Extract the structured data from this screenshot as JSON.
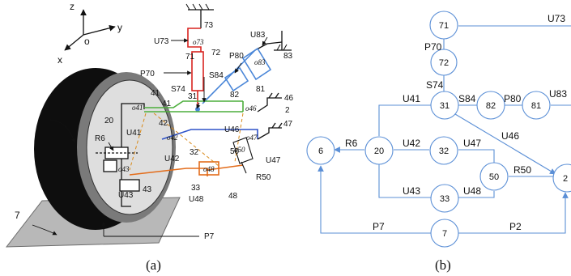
{
  "panel_a": {
    "caption": "(a)",
    "axes": {
      "z": "z",
      "y": "y",
      "x": "x",
      "origin": "o"
    },
    "labels": {
      "l6": "6",
      "l7": "7",
      "l20": "20",
      "l41": "41",
      "l41b": "41",
      "l31": "31",
      "l42": "42",
      "l43": "43",
      "l32": "32",
      "l33": "33",
      "l50": "50",
      "l48": "48",
      "l46": "46",
      "l47": "47",
      "l2": "2",
      "l71": "71",
      "l72": "72",
      "l73": "73",
      "l81": "81",
      "l82": "82",
      "l83": "83",
      "u73": "U73",
      "u83": "U83",
      "p70": "P70",
      "p80": "P80",
      "s74": "S74",
      "s84": "S84",
      "u41": "U41",
      "u42": "U42",
      "u43": "U43",
      "u46": "U46",
      "u47": "U47",
      "u48": "U48",
      "r6": "R6",
      "r50": "R50",
      "p7": "P7"
    },
    "frames": {
      "o73": "o73",
      "o83": "o83",
      "o41": "o41",
      "o46": "o46",
      "o42": "o42",
      "o47": "o47",
      "o43": "o43",
      "o48": "o48",
      "o50": "o50"
    }
  },
  "panel_b": {
    "caption": "(b)",
    "nodes": {
      "n71": "71",
      "n72": "72",
      "n31": "31",
      "n82": "82",
      "n81": "81",
      "n6": "6",
      "n20": "20",
      "n32": "32",
      "n50": "50",
      "n33": "33",
      "n2": "2",
      "n7": "7"
    },
    "edges": {
      "u73": "U73",
      "p70": "P70",
      "s74": "S74",
      "u41": "U41",
      "s84": "S84",
      "p80": "P80",
      "u83": "U83",
      "u46": "U46",
      "r6": "R6",
      "u42": "U42",
      "u47": "U47",
      "r50": "R50",
      "u43": "U43",
      "u48": "U48",
      "p7": "P7",
      "p2": "P2"
    }
  },
  "colors": {
    "graph_line": "#5b8fd6",
    "strut_red": "#d9231f",
    "strut_blue": "#4a86d8",
    "link_green": "#4cae3c",
    "link_blue": "#2e52c8",
    "link_orange": "#e36c1a",
    "ground_gray": "#b8b8b8",
    "tire": "#0e0e0e",
    "rim": "#7a7a7a",
    "hub": "#dedede"
  }
}
